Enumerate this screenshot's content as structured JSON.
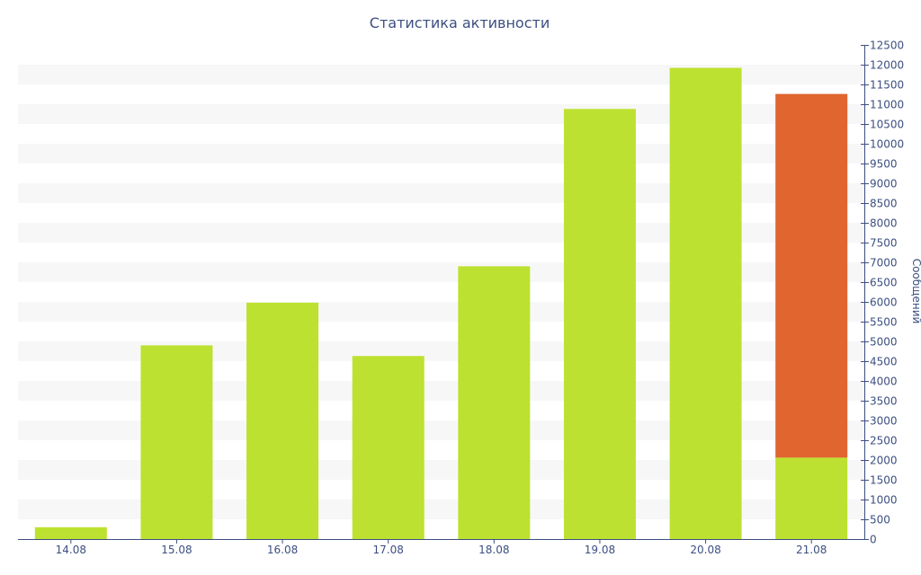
{
  "chart_data": {
    "type": "bar",
    "title": "Статистика активности",
    "xlabel": "",
    "ylabel": "Сообщений",
    "y_axis_position": "right",
    "ylim": [
      0,
      12500
    ],
    "y_ticks": [
      0,
      500,
      1000,
      1500,
      2000,
      2500,
      3000,
      3500,
      4000,
      4500,
      5000,
      5500,
      6000,
      6500,
      7000,
      7500,
      8000,
      8500,
      9000,
      9500,
      10000,
      10500,
      11000,
      11500,
      12000,
      12500
    ],
    "grid": "alternating-bands",
    "legend": "none",
    "stacked": true,
    "categories": [
      "14.08",
      "15.08",
      "16.08",
      "17.08",
      "18.08",
      "19.08",
      "20.08",
      "21.08"
    ],
    "series": [
      {
        "values": [
          300,
          4900,
          5980,
          4630,
          6900,
          10880,
          11920,
          2060
        ],
        "color": "#bde130"
      },
      {
        "values": [
          0,
          0,
          0,
          0,
          0,
          0,
          0,
          9200
        ],
        "color": "#e0652f"
      }
    ],
    "colors": {
      "text": "#3c4f80",
      "axis": "#3c4f80",
      "band": "#f7f7f7"
    }
  }
}
